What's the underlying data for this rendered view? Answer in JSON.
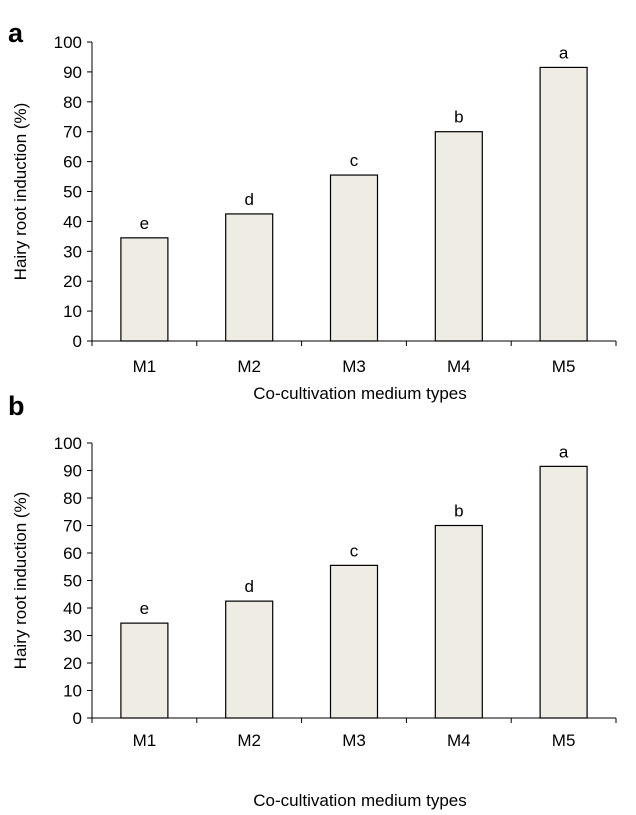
{
  "chart_data": [
    {
      "panel": "a",
      "type": "bar",
      "categories": [
        "M1",
        "M2",
        "M3",
        "M4",
        "M5"
      ],
      "values": [
        34.5,
        42.5,
        55.5,
        70,
        91.5
      ],
      "bar_labels": [
        "e",
        "d",
        "c",
        "b",
        "a"
      ],
      "xlabel": "Co-cultivation medium types",
      "ylabel": "Hairy root induction (%)",
      "ylim": [
        0,
        100
      ],
      "yticks": [
        0,
        10,
        20,
        30,
        40,
        50,
        60,
        70,
        80,
        90,
        100
      ],
      "grid": false,
      "bar_color": "#efece3"
    },
    {
      "panel": "b",
      "type": "bar",
      "categories": [
        "M1",
        "M2",
        "M3",
        "M4",
        "M5"
      ],
      "values": [
        34.5,
        42.5,
        55.5,
        70,
        91.5
      ],
      "bar_labels": [
        "e",
        "d",
        "c",
        "b",
        "a"
      ],
      "xlabel": "Co-cultivation medium types",
      "ylabel": "Hairy root induction (%)",
      "ylim": [
        0,
        100
      ],
      "yticks": [
        0,
        10,
        20,
        30,
        40,
        50,
        60,
        70,
        80,
        90,
        100
      ],
      "grid": false,
      "bar_color": "#efece3"
    }
  ]
}
